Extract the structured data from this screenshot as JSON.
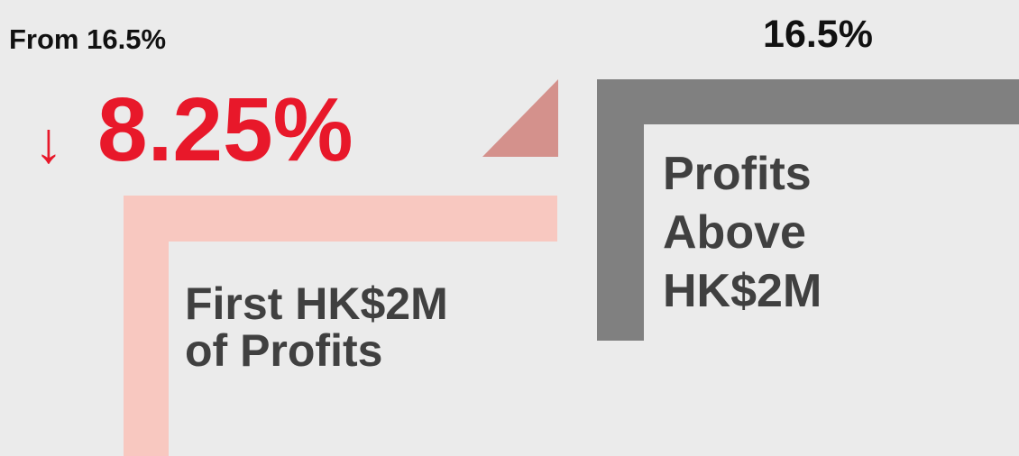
{
  "left": {
    "from_label": "From 16.5%",
    "arrow": "↓",
    "rate": "8.25%",
    "label_lines": [
      "First HK$2M",
      "of Profits"
    ]
  },
  "right": {
    "rate": "16.5%",
    "label_lines": [
      "Profits",
      "Above",
      "HK$2M"
    ]
  }
}
